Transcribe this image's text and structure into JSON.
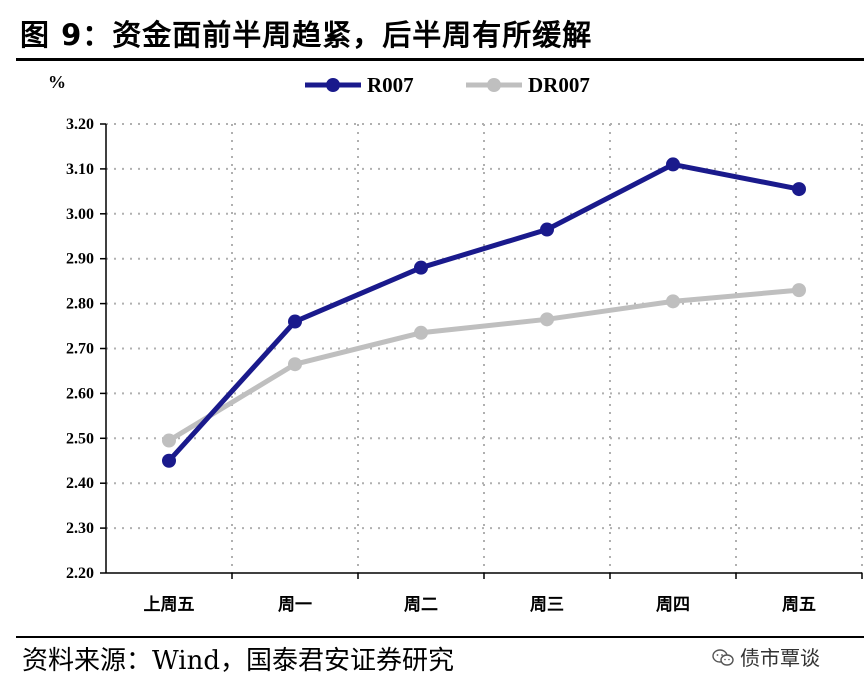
{
  "header": {
    "title": "图 9：资金面前半周趋紧，后半周有所缓解"
  },
  "footer": {
    "source": "资料来源：Wind，国泰君安证券研究",
    "watermark": "债市覃谈",
    "watermark_icon": "wechat-icon"
  },
  "chart_data": {
    "type": "line",
    "ylabel": "%",
    "ylim": [
      2.2,
      3.2
    ],
    "ytick_step": 0.1,
    "yticks": [
      "3.20",
      "3.10",
      "3.00",
      "2.90",
      "2.80",
      "2.70",
      "2.60",
      "2.50",
      "2.40",
      "2.30",
      "2.20"
    ],
    "grid": true,
    "legend_position": "top-center",
    "categories": [
      "上周五",
      "周一",
      "周二",
      "周三",
      "周四",
      "周五"
    ],
    "series": [
      {
        "name": "R007",
        "color": "#1a1a8c",
        "values": [
          2.45,
          2.76,
          2.88,
          2.965,
          3.11,
          3.055
        ]
      },
      {
        "name": "DR007",
        "color": "#bfbfbf",
        "values": [
          2.495,
          2.665,
          2.735,
          2.765,
          2.805,
          2.83
        ]
      }
    ]
  }
}
